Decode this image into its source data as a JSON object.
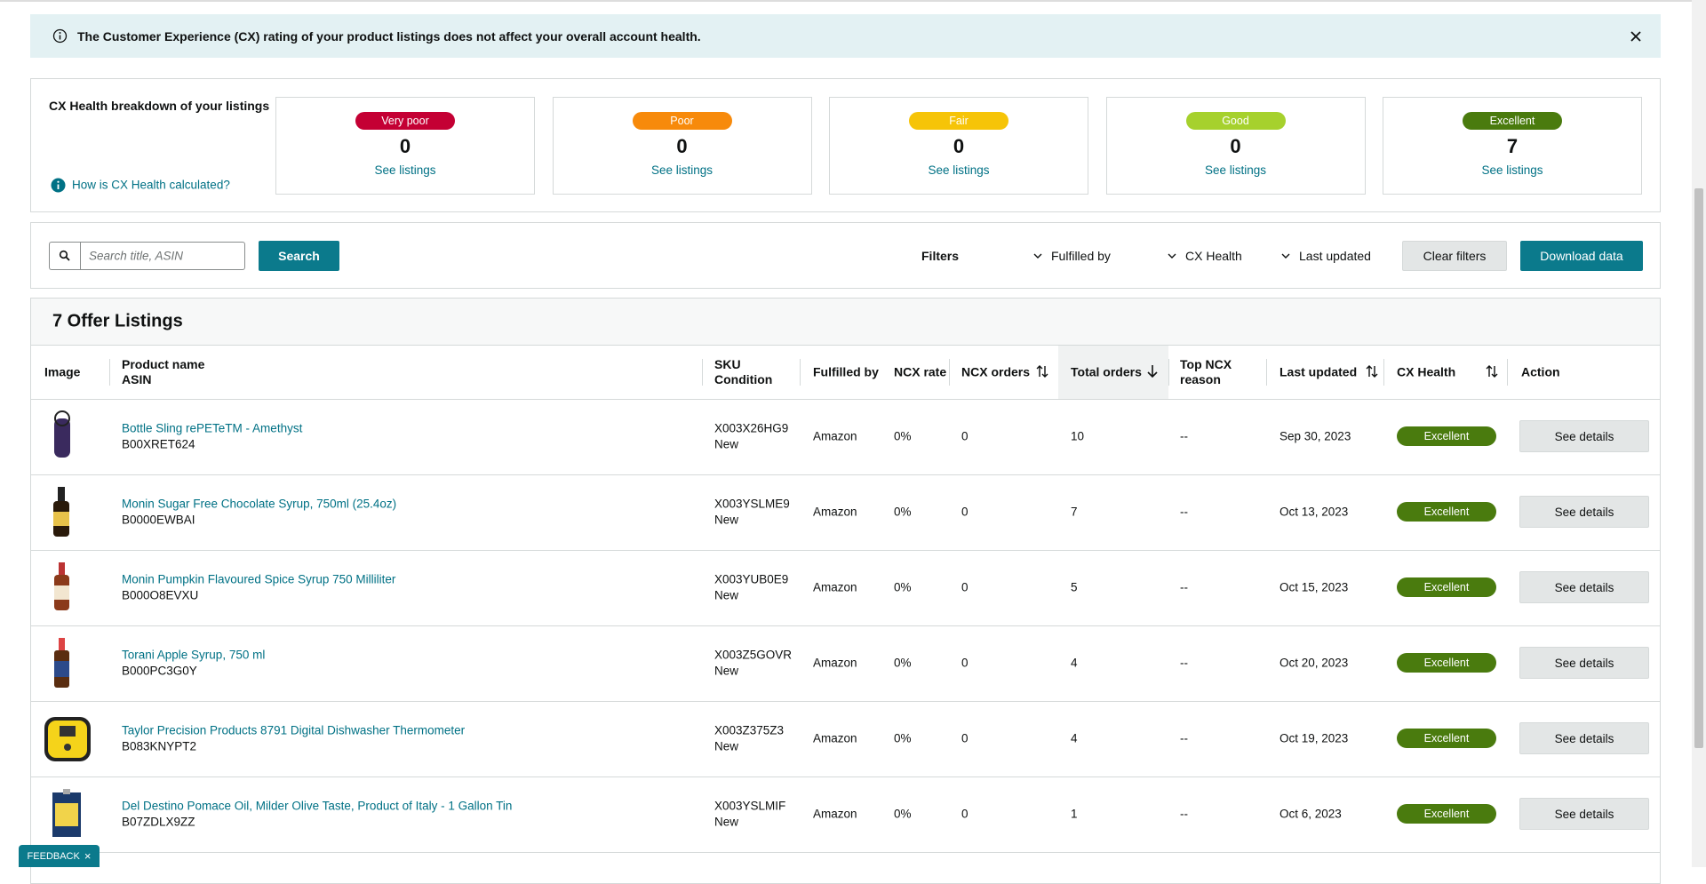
{
  "banner": {
    "text": "The Customer Experience (CX) rating of your product listings does not affect your overall account health."
  },
  "breakdown": {
    "title": "CX Health breakdown of your listings",
    "help_link": "How is CX Health calculated?",
    "cards": [
      {
        "label": "Very poor",
        "count": 0,
        "link": "See listings",
        "color": "#c40034"
      },
      {
        "label": "Poor",
        "count": 0,
        "link": "See listings",
        "color": "#f78a0b"
      },
      {
        "label": "Fair",
        "count": 0,
        "link": "See listings",
        "color": "#f6c408"
      },
      {
        "label": "Good",
        "count": 0,
        "link": "See listings",
        "color": "#a6d12d"
      },
      {
        "label": "Excellent",
        "count": 7,
        "link": "See listings",
        "color": "#4a7b0e"
      }
    ]
  },
  "toolbar": {
    "search_placeholder": "Search title, ASIN",
    "search_button": "Search",
    "filters_label": "Filters",
    "filters": [
      "Fulfilled by",
      "CX Health",
      "Last updated"
    ],
    "clear": "Clear filters",
    "download": "Download data"
  },
  "listings": {
    "title": "7 Offer Listings",
    "columns": [
      [
        "Image"
      ],
      [
        "Product name",
        "ASIN"
      ],
      [
        "SKU",
        "Condition"
      ],
      [
        "Fulfilled by"
      ],
      [
        "NCX rate"
      ],
      [
        "NCX orders"
      ],
      [
        "Total orders"
      ],
      [
        "Top NCX",
        "reason"
      ],
      [
        "Last updated"
      ],
      [
        "CX Health"
      ],
      [
        "Action"
      ]
    ],
    "rows": [
      {
        "product": "Bottle Sling rePETeTM - Amethyst",
        "asin": "B00XRET624",
        "sku": "X003X26HG9",
        "condition": "New",
        "fulfilled_by": "Amazon",
        "ncx_rate": "0%",
        "ncx_orders": 0,
        "total_orders": 10,
        "top_ncx_reason": "--",
        "last_updated": "Sep 30, 2023",
        "cx_health": "Excellent",
        "action": "See details"
      },
      {
        "product": "Monin Sugar Free Chocolate Syrup, 750ml (25.4oz)",
        "asin": "B0000EWBAI",
        "sku": "X003YSLME9",
        "condition": "New",
        "fulfilled_by": "Amazon",
        "ncx_rate": "0%",
        "ncx_orders": 0,
        "total_orders": 7,
        "top_ncx_reason": "--",
        "last_updated": "Oct 13, 2023",
        "cx_health": "Excellent",
        "action": "See details"
      },
      {
        "product": "Monin Pumpkin Flavoured Spice Syrup 750 Milliliter",
        "asin": "B000O8EVXU",
        "sku": "X003YUB0E9",
        "condition": "New",
        "fulfilled_by": "Amazon",
        "ncx_rate": "0%",
        "ncx_orders": 0,
        "total_orders": 5,
        "top_ncx_reason": "--",
        "last_updated": "Oct 15, 2023",
        "cx_health": "Excellent",
        "action": "See details"
      },
      {
        "product": "Torani Apple Syrup, 750 ml",
        "asin": "B000PC3G0Y",
        "sku": "X003Z5GOVR",
        "condition": "New",
        "fulfilled_by": "Amazon",
        "ncx_rate": "0%",
        "ncx_orders": 0,
        "total_orders": 4,
        "top_ncx_reason": "--",
        "last_updated": "Oct 20, 2023",
        "cx_health": "Excellent",
        "action": "See details"
      },
      {
        "product": "Taylor Precision Products 8791 Digital Dishwasher Thermometer",
        "asin": "B083KNYPT2",
        "sku": "X003Z375Z3",
        "condition": "New",
        "fulfilled_by": "Amazon",
        "ncx_rate": "0%",
        "ncx_orders": 0,
        "total_orders": 4,
        "top_ncx_reason": "--",
        "last_updated": "Oct 19, 2023",
        "cx_health": "Excellent",
        "action": "See details"
      },
      {
        "product": "Del Destino Pomace Oil, Milder Olive Taste, Product of Italy - 1 Gallon Tin",
        "asin": "B07ZDLX9ZZ",
        "sku": "X003YSLMIF",
        "condition": "New",
        "fulfilled_by": "Amazon",
        "ncx_rate": "0%",
        "ncx_orders": 0,
        "total_orders": 1,
        "top_ncx_reason": "--",
        "last_updated": "Oct 6, 2023",
        "cx_health": "Excellent",
        "action": "See details"
      }
    ]
  },
  "feedback": "FEEDBACK"
}
